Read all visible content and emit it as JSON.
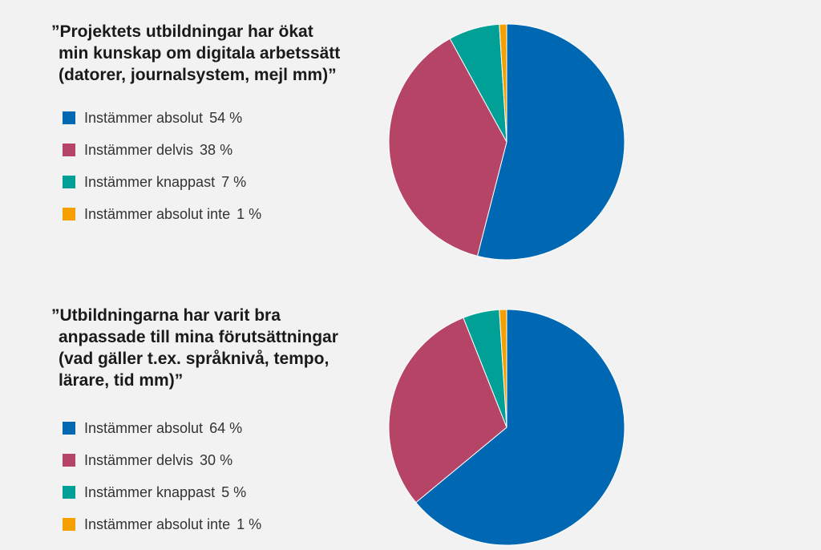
{
  "chart_data": [
    {
      "type": "pie",
      "title": "”Projektets utbildningar har ökat min kunskap om digitala arbetssätt (datorer, journalsystem, mejl mm)”",
      "title_lines": [
        "”Projektets utbildningar har ökat",
        "min kunskap om digitala arbetssätt",
        "(datorer, journalsystem, mejl mm)”"
      ],
      "legend_placement": "left",
      "slices": [
        {
          "label": "Instämmer absolut",
          "value": 54,
          "value_label": "54 %",
          "color": "#0067b3"
        },
        {
          "label": "Instämmer delvis",
          "value": 38,
          "value_label": "38 %",
          "color": "#b54466"
        },
        {
          "label": "Instämmer knappast",
          "value": 7,
          "value_label": "7 %",
          "color": "#00a096"
        },
        {
          "label": "Instämmer absolut inte",
          "value": 1,
          "value_label": "1 %",
          "color": "#f5a000"
        }
      ]
    },
    {
      "type": "pie",
      "title": "”Utbildningarna har varit bra anpassade till mina förutsättningar (vad gäller t.ex. språknivå, tempo, lärare, tid mm)”",
      "title_lines": [
        "”Utbildningarna har varit bra",
        "anpassade till mina förutsättningar",
        "(vad gäller t.ex. språknivå, tempo,",
        "lärare, tid mm)”"
      ],
      "legend_placement": "left",
      "slices": [
        {
          "label": "Instämmer absolut",
          "value": 64,
          "value_label": "64 %",
          "color": "#0067b3"
        },
        {
          "label": "Instämmer delvis",
          "value": 30,
          "value_label": "30 %",
          "color": "#b54466"
        },
        {
          "label": "Instämmer knappast",
          "value": 5,
          "value_label": "5 %",
          "color": "#00a096"
        },
        {
          "label": "Instämmer absolut inte",
          "value": 1,
          "value_label": "1 %",
          "color": "#f5a000"
        }
      ]
    }
  ]
}
